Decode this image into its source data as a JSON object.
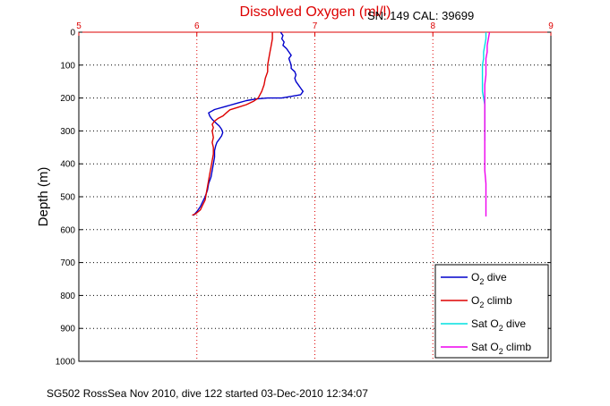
{
  "chart_data": {
    "type": "line",
    "title": "Dissolved Oxygen (ml/l)",
    "subtitle": "SN: 149  CAL: 39699",
    "xlabel": "Dissolved Oxygen (ml/l)",
    "ylabel": "Depth (m)",
    "xlim": [
      5,
      9
    ],
    "ylim": [
      0,
      1000
    ],
    "y_reversed": true,
    "x_axis_position": "top",
    "xticks": [
      "5",
      "6",
      "7",
      "8",
      "9"
    ],
    "yticks": [
      "0",
      "100",
      "200",
      "300",
      "400",
      "500",
      "600",
      "700",
      "800",
      "900",
      "1000"
    ],
    "grid": true,
    "legend_position": "bottom-right",
    "series": [
      {
        "name": "O2 dive",
        "legend_base": "O",
        "legend_sub": "2",
        "legend_rest": " dive",
        "color": "#0000cc",
        "points": [
          [
            6.71,
            0
          ],
          [
            6.73,
            10
          ],
          [
            6.72,
            20
          ],
          [
            6.74,
            30
          ],
          [
            6.73,
            40
          ],
          [
            6.76,
            50
          ],
          [
            6.78,
            60
          ],
          [
            6.8,
            70
          ],
          [
            6.78,
            80
          ],
          [
            6.79,
            90
          ],
          [
            6.8,
            100
          ],
          [
            6.8,
            110
          ],
          [
            6.83,
            120
          ],
          [
            6.84,
            130
          ],
          [
            6.83,
            140
          ],
          [
            6.84,
            150
          ],
          [
            6.86,
            160
          ],
          [
            6.88,
            170
          ],
          [
            6.9,
            180
          ],
          [
            6.88,
            190
          ],
          [
            6.72,
            200
          ],
          [
            6.6,
            200
          ],
          [
            6.5,
            203
          ],
          [
            6.42,
            208
          ],
          [
            6.35,
            215
          ],
          [
            6.25,
            225
          ],
          [
            6.15,
            235
          ],
          [
            6.1,
            245
          ],
          [
            6.11,
            255
          ],
          [
            6.13,
            265
          ],
          [
            6.16,
            275
          ],
          [
            6.19,
            285
          ],
          [
            6.21,
            295
          ],
          [
            6.22,
            305
          ],
          [
            6.21,
            315
          ],
          [
            6.19,
            325
          ],
          [
            6.17,
            335
          ],
          [
            6.16,
            345
          ],
          [
            6.15,
            360
          ],
          [
            6.15,
            380
          ],
          [
            6.14,
            400
          ],
          [
            6.13,
            420
          ],
          [
            6.12,
            440
          ],
          [
            6.1,
            460
          ],
          [
            6.09,
            480
          ],
          [
            6.07,
            500
          ],
          [
            6.05,
            515
          ],
          [
            6.03,
            530
          ],
          [
            6.0,
            545
          ],
          [
            5.97,
            557
          ]
        ]
      },
      {
        "name": "O2 climb",
        "legend_base": "O",
        "legend_sub": "2",
        "legend_rest": " climb",
        "color": "#dd0000",
        "points": [
          [
            6.64,
            0
          ],
          [
            6.64,
            20
          ],
          [
            6.63,
            40
          ],
          [
            6.62,
            60
          ],
          [
            6.61,
            80
          ],
          [
            6.6,
            100
          ],
          [
            6.6,
            120
          ],
          [
            6.58,
            140
          ],
          [
            6.57,
            160
          ],
          [
            6.55,
            180
          ],
          [
            6.52,
            200
          ],
          [
            6.48,
            210
          ],
          [
            6.42,
            220
          ],
          [
            6.35,
            228
          ],
          [
            6.28,
            236
          ],
          [
            6.25,
            245
          ],
          [
            6.22,
            255
          ],
          [
            6.18,
            262
          ],
          [
            6.15,
            270
          ],
          [
            6.13,
            280
          ],
          [
            6.14,
            290
          ],
          [
            6.13,
            300
          ],
          [
            6.14,
            320
          ],
          [
            6.13,
            335
          ],
          [
            6.14,
            350
          ],
          [
            6.14,
            370
          ],
          [
            6.13,
            390
          ],
          [
            6.12,
            410
          ],
          [
            6.11,
            430
          ],
          [
            6.1,
            450
          ],
          [
            6.09,
            470
          ],
          [
            6.08,
            490
          ],
          [
            6.07,
            510
          ],
          [
            6.05,
            525
          ],
          [
            6.03,
            540
          ],
          [
            5.99,
            552
          ],
          [
            5.96,
            556
          ]
        ]
      },
      {
        "name": "Sat O2 dive",
        "legend_base": "Sat O",
        "legend_sub": "2",
        "legend_rest": " dive",
        "color": "#00e0e0",
        "points": [
          [
            8.45,
            0
          ],
          [
            8.45,
            20
          ],
          [
            8.44,
            40
          ],
          [
            8.43,
            60
          ],
          [
            8.43,
            80
          ],
          [
            8.42,
            100
          ],
          [
            8.42,
            120
          ],
          [
            8.42,
            140
          ],
          [
            8.42,
            160
          ],
          [
            8.42,
            180
          ],
          [
            8.43,
            200
          ],
          [
            8.44,
            220
          ],
          [
            8.44,
            250
          ],
          [
            8.44,
            280
          ],
          [
            8.44,
            300
          ],
          [
            8.44,
            330
          ]
        ]
      },
      {
        "name": "Sat O2 climb",
        "legend_base": "Sat O",
        "legend_sub": "2",
        "legend_rest": " climb",
        "color": "#ee00ee",
        "points": [
          [
            8.48,
            0
          ],
          [
            8.47,
            20
          ],
          [
            8.46,
            40
          ],
          [
            8.46,
            60
          ],
          [
            8.45,
            80
          ],
          [
            8.45,
            100
          ],
          [
            8.45,
            130
          ],
          [
            8.44,
            160
          ],
          [
            8.44,
            190
          ],
          [
            8.44,
            220
          ],
          [
            8.44,
            250
          ],
          [
            8.44,
            280
          ],
          [
            8.44,
            310
          ],
          [
            8.44,
            340
          ],
          [
            8.44,
            380
          ],
          [
            8.44,
            420
          ],
          [
            8.45,
            460
          ],
          [
            8.45,
            500
          ],
          [
            8.45,
            540
          ],
          [
            8.45,
            560
          ]
        ]
      }
    ]
  },
  "footer": "SG502 RossSea Nov 2010, dive 122 started 03-Dec-2010 12:34:07"
}
